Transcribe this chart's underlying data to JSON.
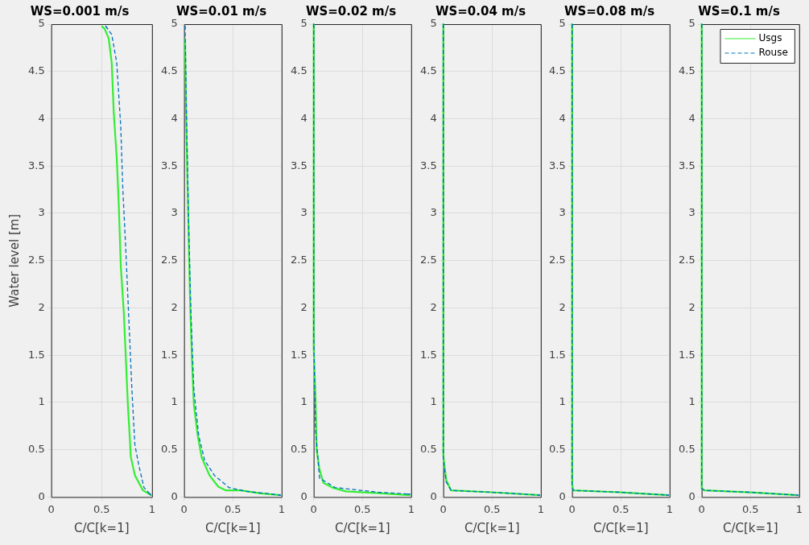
{
  "chart_data": [
    {
      "type": "line",
      "title": "WS=0.001 m/s",
      "xlabel": "C/C[k=1]",
      "ylabel": "Water level [m]",
      "xlim": [
        0,
        1
      ],
      "xticks": [
        0,
        0.5,
        1
      ],
      "ylim": [
        0,
        5
      ],
      "yticks": [
        0,
        0.5,
        1,
        1.5,
        2,
        2.5,
        3,
        3.5,
        4,
        4.5,
        5
      ],
      "grid": true,
      "series": [
        {
          "color": "#33ee33",
          "line_style": "solid",
          "x": [
            0.5,
            0.53,
            0.57,
            0.6,
            0.62,
            0.65,
            0.67,
            0.69,
            0.72,
            0.74,
            0.76,
            0.79,
            0.83,
            0.91,
            0.99
          ],
          "values": [
            4.98,
            4.95,
            4.85,
            4.59,
            4.07,
            3.58,
            3.09,
            2.44,
            1.95,
            1.47,
            0.98,
            0.42,
            0.23,
            0.07,
            0.02
          ]
        },
        {
          "color": "#0072bd",
          "line_style": "dashed",
          "x": [
            0.54,
            0.6,
            0.65,
            0.69,
            0.71,
            0.74,
            0.76,
            0.78,
            0.8,
            0.83,
            0.87,
            0.92,
            0.99
          ],
          "values": [
            4.98,
            4.89,
            4.59,
            3.91,
            3.26,
            2.61,
            2.12,
            1.63,
            1.14,
            0.55,
            0.33,
            0.1,
            0.02
          ]
        }
      ]
    },
    {
      "type": "line",
      "title": "WS=0.01 m/s",
      "xlabel": "C/C[k=1]",
      "xlim": [
        0,
        1
      ],
      "xticks": [
        0,
        0.5,
        1
      ],
      "ylim": [
        0,
        5
      ],
      "yticks": [
        0,
        0.5,
        1,
        1.5,
        2,
        2.5,
        3,
        3.5,
        4,
        4.5,
        5
      ],
      "grid": true,
      "series": [
        {
          "color": "#33ee33",
          "line_style": "solid",
          "x": [
            0.01,
            0.02,
            0.04,
            0.06,
            0.08,
            0.1,
            0.14,
            0.18,
            0.26,
            0.35,
            0.43,
            0.58,
            0.77,
            0.99
          ],
          "values": [
            4.85,
            4.07,
            3.09,
            2.12,
            1.47,
            0.98,
            0.65,
            0.42,
            0.23,
            0.11,
            0.07,
            0.07,
            0.04,
            0.02
          ]
        },
        {
          "color": "#0072bd",
          "line_style": "dashed",
          "x": [
            0.01,
            0.03,
            0.05,
            0.07,
            0.1,
            0.15,
            0.21,
            0.31,
            0.46,
            0.64,
            0.99
          ],
          "values": [
            4.98,
            3.75,
            2.77,
            1.95,
            1.14,
            0.65,
            0.39,
            0.23,
            0.1,
            0.06,
            0.02
          ]
        }
      ]
    },
    {
      "type": "line",
      "title": "WS=0.02 m/s",
      "xlabel": "C/C[k=1]",
      "xlim": [
        0,
        1
      ],
      "xticks": [
        0,
        0.5,
        1
      ],
      "ylim": [
        0,
        5
      ],
      "yticks": [
        0,
        0.5,
        1,
        1.5,
        2,
        2.5,
        3,
        3.5,
        4,
        4.5,
        5
      ],
      "grid": true,
      "series": [
        {
          "color": "#33ee33",
          "line_style": "solid",
          "x": [
            0,
            0,
            0.02,
            0.03,
            0.06,
            0.1,
            0.19,
            0.33,
            0.67,
            0.99
          ],
          "values": [
            5,
            1.58,
            1,
            0.5,
            0.29,
            0.15,
            0.1,
            0.06,
            0.04,
            0.02
          ]
        },
        {
          "color": "#0072bd",
          "line_style": "dashed",
          "x": [
            0,
            0,
            0.02,
            0.06,
            0.22,
            0.67,
            0.99
          ],
          "values": [
            5,
            1.73,
            0.7,
            0.2,
            0.1,
            0.05,
            0.03
          ]
        }
      ]
    },
    {
      "type": "line",
      "title": "WS=0.04 m/s",
      "xlabel": "C/C[k=1]",
      "xlim": [
        0,
        1
      ],
      "xticks": [
        0,
        0.5,
        1
      ],
      "ylim": [
        0,
        5
      ],
      "yticks": [
        0,
        0.5,
        1,
        1.5,
        2,
        2.5,
        3,
        3.5,
        4,
        4.5,
        5
      ],
      "grid": true,
      "series": [
        {
          "color": "#33ee33",
          "line_style": "solid",
          "x": [
            0,
            0,
            0.03,
            0.08,
            0.5,
            0.99
          ],
          "values": [
            5,
            0.44,
            0.18,
            0.07,
            0.05,
            0.02
          ]
        },
        {
          "color": "#0072bd",
          "line_style": "dashed",
          "x": [
            0,
            0,
            0.03,
            0.08,
            0.5,
            0.99
          ],
          "values": [
            5,
            0.4,
            0.16,
            0.07,
            0.05,
            0.02
          ]
        }
      ]
    },
    {
      "type": "line",
      "title": "WS=0.08 m/s",
      "xlabel": "C/C[k=1]",
      "xlim": [
        0,
        1
      ],
      "xticks": [
        0,
        0.5,
        1
      ],
      "ylim": [
        0,
        5
      ],
      "yticks": [
        0,
        0.5,
        1,
        1.5,
        2,
        2.5,
        3,
        3.5,
        4,
        4.5,
        5
      ],
      "grid": true,
      "series": [
        {
          "color": "#33ee33",
          "line_style": "solid",
          "x": [
            0,
            0,
            0.01,
            0.5,
            0.99
          ],
          "values": [
            5,
            0.15,
            0.07,
            0.05,
            0.02
          ]
        },
        {
          "color": "#0072bd",
          "line_style": "dashed",
          "x": [
            0,
            0,
            0.01,
            0.5,
            0.99
          ],
          "values": [
            5,
            0.13,
            0.07,
            0.05,
            0.02
          ]
        }
      ]
    },
    {
      "type": "line",
      "title": "WS=0.1 m/s",
      "xlabel": "C/C[k=1]",
      "xlim": [
        0,
        1
      ],
      "xticks": [
        0,
        0.5,
        1
      ],
      "ylim": [
        0,
        5
      ],
      "yticks": [
        0,
        0.5,
        1,
        1.5,
        2,
        2.5,
        3,
        3.5,
        4,
        4.5,
        5
      ],
      "grid": true,
      "legend": "top right",
      "series": [
        {
          "name": "Usgs",
          "color": "#33ee33",
          "line_style": "solid",
          "x": [
            0,
            0,
            0.03,
            0.5,
            0.99
          ],
          "values": [
            5,
            0.09,
            0.07,
            0.05,
            0.02
          ]
        },
        {
          "name": "Rouse",
          "color": "#0072bd",
          "line_style": "dashed",
          "x": [
            0,
            0,
            0.03,
            0.5,
            0.99
          ],
          "values": [
            5,
            0.09,
            0.07,
            0.05,
            0.02
          ]
        }
      ]
    }
  ]
}
